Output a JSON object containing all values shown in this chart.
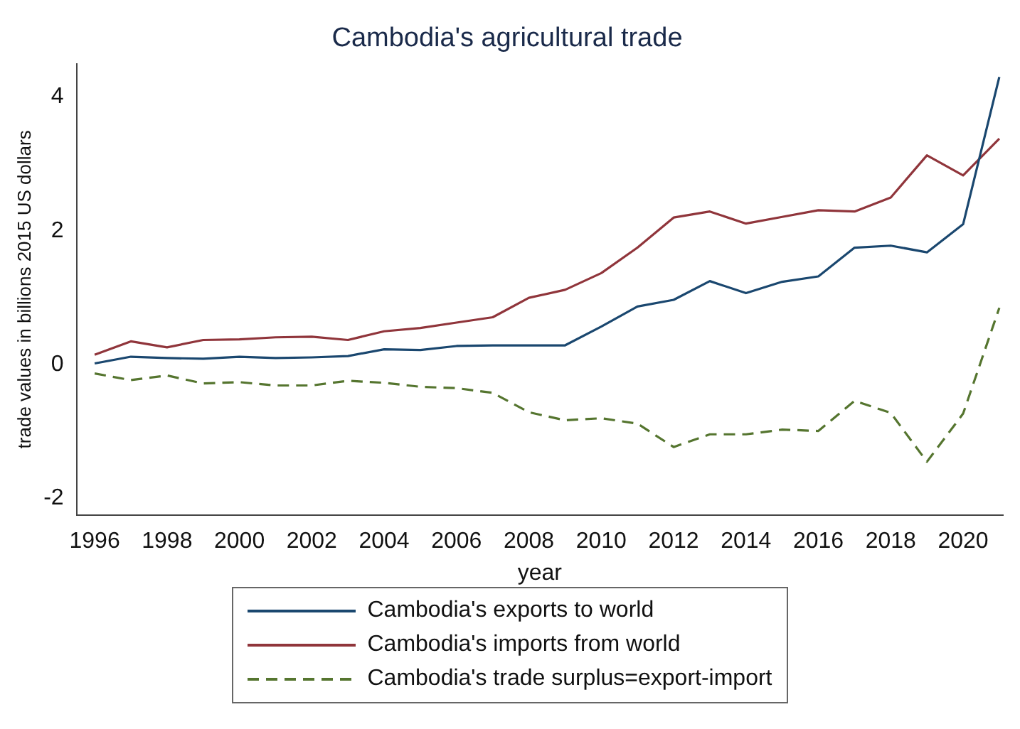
{
  "chart_data": {
    "type": "line",
    "title": "Cambodia's agricultural trade",
    "xlabel": "year",
    "ylabel": "trade values in billions 2015 US dollars",
    "x": [
      1996,
      1997,
      1998,
      1999,
      2000,
      2001,
      2002,
      2003,
      2004,
      2005,
      2006,
      2007,
      2008,
      2009,
      2010,
      2011,
      2012,
      2013,
      2014,
      2015,
      2016,
      2017,
      2018,
      2019,
      2020,
      2021
    ],
    "series": [
      {
        "name": "Cambodia's exports to world",
        "color": "#1a476f",
        "line_style": "solid",
        "values": [
          0.02,
          0.12,
          0.1,
          0.09,
          0.12,
          0.1,
          0.11,
          0.13,
          0.23,
          0.22,
          0.28,
          0.29,
          0.29,
          0.29,
          0.57,
          0.87,
          0.97,
          1.25,
          1.07,
          1.24,
          1.32,
          1.75,
          1.78,
          1.68,
          2.1,
          4.3
        ]
      },
      {
        "name": "Cambodia's imports from world",
        "color": "#90353b",
        "line_style": "solid",
        "values": [
          0.15,
          0.35,
          0.26,
          0.37,
          0.38,
          0.41,
          0.42,
          0.37,
          0.5,
          0.55,
          0.63,
          0.71,
          1.0,
          1.12,
          1.37,
          1.75,
          2.2,
          2.29,
          2.11,
          2.21,
          2.31,
          2.29,
          2.5,
          3.13,
          2.83,
          3.38
        ]
      },
      {
        "name": "Cambodia's trade surplus=export-import",
        "color": "#55752f",
        "line_style": "dashed",
        "values": [
          -0.13,
          -0.23,
          -0.16,
          -0.28,
          -0.26,
          -0.31,
          -0.31,
          -0.24,
          -0.27,
          -0.33,
          -0.35,
          -0.42,
          -0.71,
          -0.83,
          -0.8,
          -0.88,
          -1.23,
          -1.04,
          -1.04,
          -0.97,
          -0.99,
          -0.54,
          -0.72,
          -1.45,
          -0.73,
          0.85
        ]
      }
    ],
    "xlim": [
      1995.5,
      2021.1
    ],
    "xticks": [
      1996,
      1998,
      2000,
      2002,
      2004,
      2006,
      2008,
      2010,
      2012,
      2014,
      2016,
      2018,
      2020
    ],
    "ylim": [
      -2.25,
      4.5
    ],
    "yticks": [
      -2,
      0,
      2,
      4
    ],
    "grid": false,
    "legend": "bottom",
    "marker": "none"
  }
}
